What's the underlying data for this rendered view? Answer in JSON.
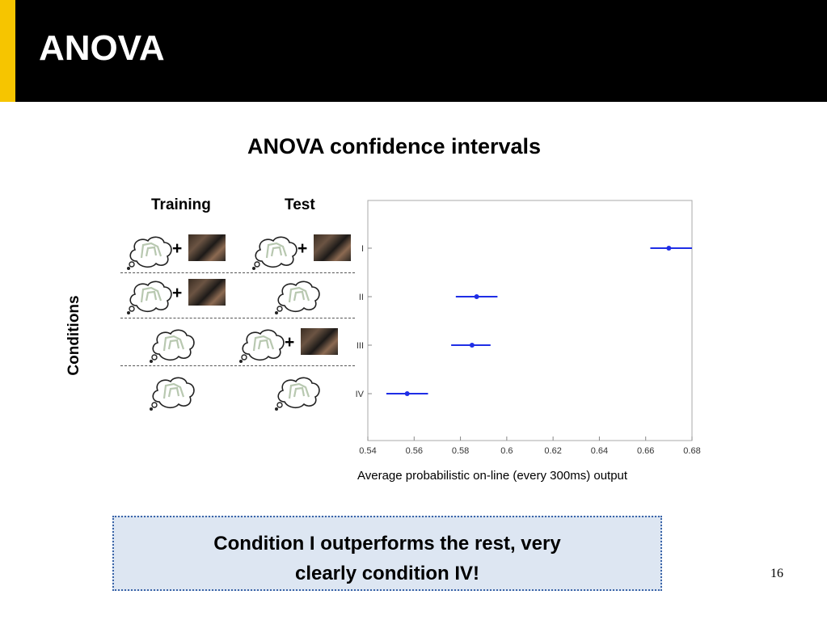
{
  "slide": {
    "title": "ANOVA",
    "subtitle": "ANOVA confidence intervals",
    "page_number": "16"
  },
  "conditions_diagram": {
    "training_label": "Training",
    "test_label": "Test",
    "side_label": "Conditions",
    "plus_sign": "+"
  },
  "chart_data": {
    "type": "scatter",
    "orientation": "horizontal",
    "categories": [
      "I",
      "II",
      "III",
      "IV"
    ],
    "series": [
      {
        "values": [
          0.67,
          0.587,
          0.585,
          0.557
        ],
        "ci_low": [
          0.662,
          0.578,
          0.576,
          0.548
        ],
        "ci_high": [
          0.68,
          0.596,
          0.593,
          0.566
        ],
        "color": "#1f2ee6"
      }
    ],
    "xlim": [
      0.54,
      0.68
    ],
    "xticks": [
      "0.54",
      "0.56",
      "0.58",
      "0.6",
      "0.62",
      "0.64",
      "0.66",
      "0.68"
    ],
    "xlabel": "Average probabilistic on-line (every 300ms) output",
    "ylabel": "",
    "grid": false
  },
  "conclusion": {
    "line1": "Condition I outperforms the rest, very",
    "line2": "clearly condition IV!"
  },
  "colors": {
    "header_bg": "#000000",
    "accent": "#f6c500",
    "box_bg": "#dde6f2",
    "box_border": "#3a64a8"
  }
}
